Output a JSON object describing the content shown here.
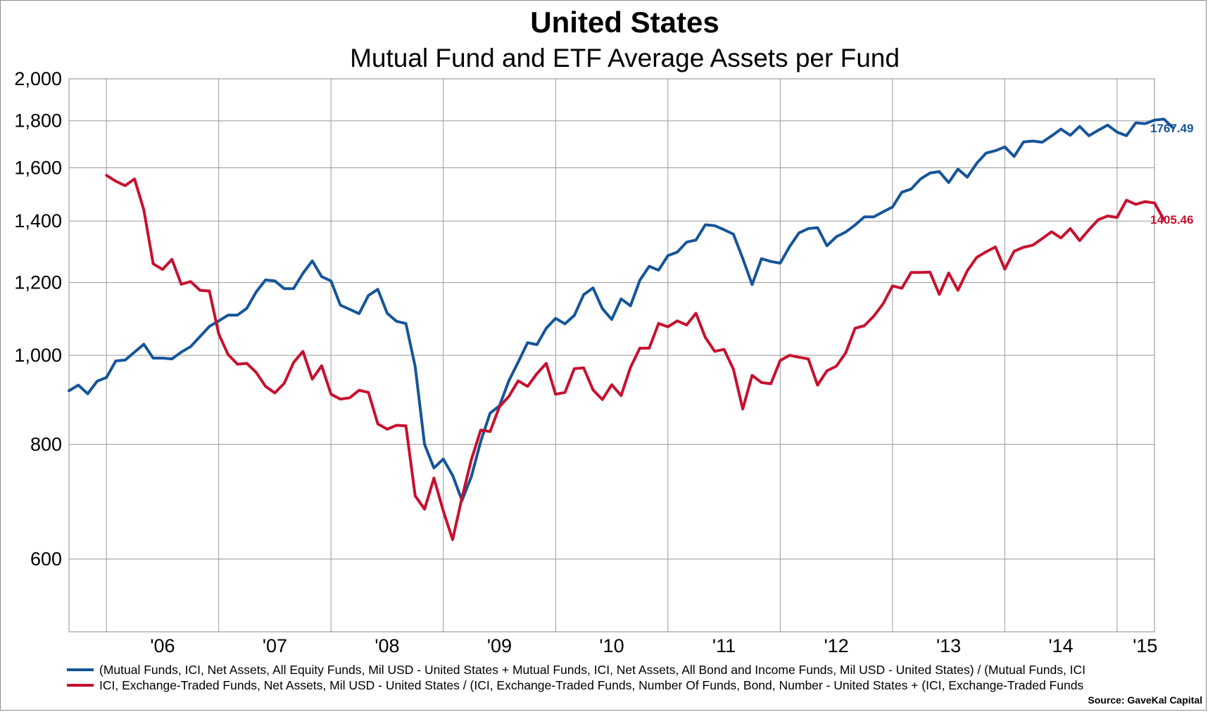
{
  "chart_data": {
    "type": "line",
    "title": "United States",
    "subtitle": "Mutual Fund and ETF Average Assets per Fund",
    "y_scale": "log",
    "ylim": [
      500,
      2000
    ],
    "y_ticks": [
      600,
      800,
      1000,
      1200,
      1400,
      1600,
      1800,
      2000
    ],
    "y_tick_labels": [
      "600",
      "800",
      "1,000",
      "1,200",
      "1,400",
      "1,600",
      "1,800",
      "2,000"
    ],
    "x_tick_labels": [
      "'06",
      "'07",
      "'08",
      "'09",
      "'10",
      "'11",
      "'12",
      "'13",
      "'14",
      "'15"
    ],
    "x_range": [
      "2005-09",
      "2015-05"
    ],
    "grid": true,
    "legend_position": "bottom",
    "source": "Source: GaveKal Capital",
    "series": [
      {
        "name": "(Mutual Funds, ICI, Net Assets, All Equity Funds, Mil USD - United States + Mutual Funds, ICI, Net Assets, All Bond and Income Funds, Mil USD - United States) / (Mutual Funds, ICI",
        "color": "#15559a",
        "end_label": "1767.49",
        "start": "2005-09",
        "values": [
          915,
          928,
          908,
          937,
          946,
          986,
          988,
          1008,
          1028,
          993,
          993,
          991,
          1008,
          1022,
          1048,
          1075,
          1090,
          1106,
          1106,
          1125,
          1172,
          1208,
          1205,
          1182,
          1182,
          1228,
          1267,
          1218,
          1205,
          1134,
          1122,
          1110,
          1162,
          1180,
          1111,
          1089,
          1083,
          972,
          800,
          754,
          771,
          740,
          695,
          738,
          806,
          865,
          881,
          938,
          983,
          1032,
          1027,
          1070,
          1097,
          1082,
          1105,
          1164,
          1184,
          1124,
          1094,
          1152,
          1132,
          1207,
          1250,
          1238,
          1284,
          1295,
          1328,
          1335,
          1387,
          1384,
          1370,
          1355,
          1275,
          1194,
          1274,
          1265,
          1260,
          1313,
          1359,
          1374,
          1377,
          1316,
          1346,
          1362,
          1386,
          1415,
          1415,
          1433,
          1450,
          1505,
          1517,
          1556,
          1579,
          1585,
          1542,
          1595,
          1563,
          1618,
          1660,
          1670,
          1686,
          1646,
          1707,
          1711,
          1706,
          1733,
          1763,
          1736,
          1775,
          1734,
          1758,
          1781,
          1750,
          1734,
          1791,
          1787,
          1803,
          1808,
          1767.49
        ]
      },
      {
        "name": "ICI, Exchange-Traded Funds, Net Assets, Mil USD - United States / (ICI, Exchange-Traded Funds, Number Of Funds, Bond, Number - United States + (ICI, Exchange-Traded Funds",
        "color": "#c8102e",
        "end_label": "1405.46",
        "start": "2006-01",
        "values": [
          1570,
          1547,
          1530,
          1556,
          1440,
          1258,
          1240,
          1272,
          1195,
          1203,
          1177,
          1175,
          1055,
          1002,
          978,
          980,
          958,
          925,
          910,
          932,
          982,
          1010,
          942,
          974,
          907,
          896,
          899,
          916,
          911,
          842,
          831,
          839,
          838,
          703,
          680,
          735,
          677,
          630,
          700,
          770,
          829,
          826,
          879,
          902,
          938,
          925,
          955,
          980,
          907,
          911,
          967,
          969,
          917,
          895,
          929,
          904,
          970,
          1018,
          1018,
          1083,
          1074,
          1090,
          1079,
          1111,
          1046,
          1010,
          1015,
          966,
          874,
          951,
          934,
          931,
          987,
          1000,
          995,
          991,
          928,
          962,
          973,
          1006,
          1070,
          1077,
          1103,
          1138,
          1190,
          1183,
          1231,
          1231,
          1232,
          1165,
          1229,
          1177,
          1236,
          1278,
          1296,
          1312,
          1241,
          1298,
          1311,
          1318,
          1340,
          1363,
          1342,
          1374,
          1333,
          1370,
          1405,
          1418,
          1413,
          1475,
          1460,
          1470,
          1465,
          1405.46
        ]
      }
    ]
  }
}
